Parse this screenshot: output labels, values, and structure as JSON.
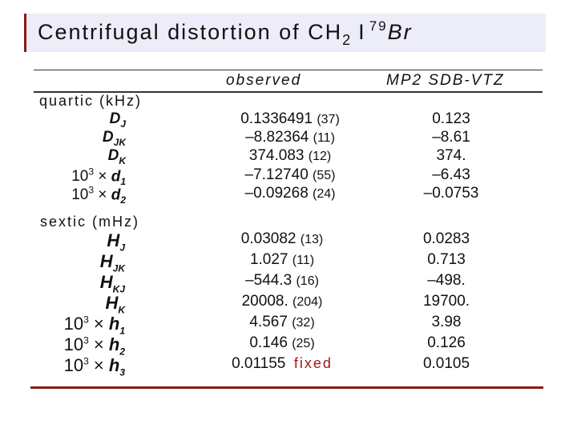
{
  "title": {
    "prefix": "Centrifugal distortion of CH",
    "sub": "2",
    "symbol": "I",
    "sup": "79",
    "element": "Br"
  },
  "columns": {
    "observed": "observed",
    "computed": "MP2 SDB-VTZ"
  },
  "quartic": {
    "heading": "quartic  (kHz)",
    "rows": [
      {
        "pre": "",
        "pre_sup": "",
        "sym": "D",
        "sub": "J",
        "obs": "0.1336491",
        "unc": "(37)",
        "calc": "0.123"
      },
      {
        "pre": "",
        "pre_sup": "",
        "sym": "D",
        "sub": "JK",
        "obs": "–8.82364",
        "unc": "(11)",
        "calc": "–8.61"
      },
      {
        "pre": "",
        "pre_sup": "",
        "sym": "D",
        "sub": "K",
        "obs": "374.083",
        "unc": "(12)",
        "calc": "374."
      },
      {
        "pre": "10",
        "pre_sup": "3",
        "times": " × ",
        "sym": "d",
        "sub": "1",
        "obs": "–7.12740",
        "unc": "(55)",
        "calc": "–6.43"
      },
      {
        "pre": "10",
        "pre_sup": "3",
        "times": " × ",
        "sym": "d",
        "sub": "2",
        "obs": "–0.09268",
        "unc": "(24)",
        "calc": "–0.0753"
      }
    ]
  },
  "sextic": {
    "heading": "sextic (mHz)",
    "rows": [
      {
        "pre": "",
        "pre_sup": "",
        "sym": "H",
        "sub": "J",
        "obs": "0.03082",
        "unc": "(13)",
        "calc": "0.0283"
      },
      {
        "pre": "",
        "pre_sup": "",
        "sym": "H",
        "sub": "JK",
        "obs": "1.027",
        "unc": "(11)",
        "calc": "0.713"
      },
      {
        "pre": "",
        "pre_sup": "",
        "sym": "H",
        "sub": "KJ",
        "obs": "–544.3",
        "unc": "(16)",
        "calc": "–498."
      },
      {
        "pre": "",
        "pre_sup": "",
        "sym": "H",
        "sub": "K",
        "obs": "20008.",
        "unc": "(204)",
        "calc": "19700."
      },
      {
        "pre": "10",
        "pre_sup": "3",
        "times": " × ",
        "sym": "h",
        "sub": "1",
        "obs": "4.567",
        "unc": "(32)",
        "calc": "3.98"
      },
      {
        "pre": "10",
        "pre_sup": "3",
        "times": " × ",
        "sym": "h",
        "sub": "2",
        "obs": "0.146",
        "unc": "(25)",
        "calc": "0.126"
      },
      {
        "pre": "10",
        "pre_sup": "3",
        "times": " × ",
        "sym": "h",
        "sub": "3",
        "obs": "0.01155",
        "unc": "",
        "fixed": "fixed",
        "calc": "0.0105"
      }
    ]
  }
}
